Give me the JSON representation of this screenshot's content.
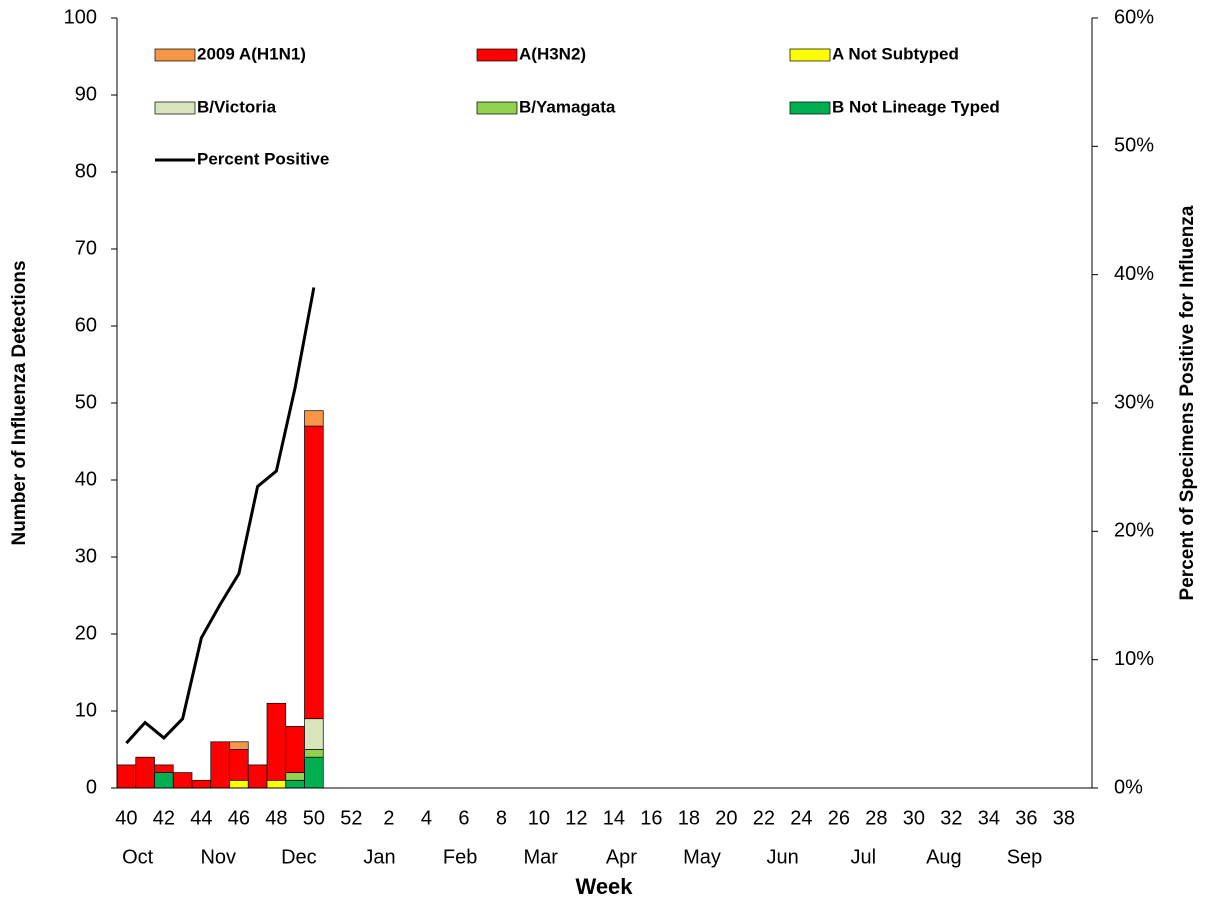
{
  "chart_data": {
    "type": "bar",
    "stacked": true,
    "x_label": "Week",
    "y_label": "Number of Influenza Detections",
    "y2_label": "Percent  of Specimens  Positive for Influenza",
    "categories": [
      "40",
      null,
      "42",
      null,
      "44",
      null,
      "46",
      null,
      "48",
      null,
      "50",
      null,
      "52",
      null,
      "2",
      null,
      "4",
      null,
      "6",
      null,
      "8",
      null,
      "10",
      null,
      "12",
      null,
      "14",
      null,
      "16",
      null,
      "18",
      null,
      "20",
      null,
      "22",
      null,
      "24",
      null,
      "26",
      null,
      "28",
      null,
      "30",
      null,
      "32",
      null,
      "34",
      null,
      "36",
      null,
      "38",
      null
    ],
    "month_labels": [
      "Oct",
      "Nov",
      "Dec",
      "Jan",
      "Feb",
      "Mar",
      "Apr",
      "May",
      "Jun",
      "Jul",
      "Aug",
      "Sep"
    ],
    "ylim": [
      0,
      100
    ],
    "yticks": [
      0,
      10,
      20,
      30,
      40,
      50,
      60,
      70,
      80,
      90,
      100
    ],
    "y2lim": [
      0,
      60
    ],
    "y2ticks": [
      {
        "value": 0,
        "label": "0%"
      },
      {
        "value": 10,
        "label": "10%"
      },
      {
        "value": 20,
        "label": "20%"
      },
      {
        "value": 30,
        "label": "30%"
      },
      {
        "value": 40,
        "label": "40%"
      },
      {
        "value": 50,
        "label": "50%"
      },
      {
        "value": 60,
        "label": "60%"
      }
    ],
    "series": [
      {
        "name": "2009 A(H1N1)",
        "color": "#f79646",
        "values": [
          0,
          0,
          0,
          0,
          0,
          0,
          1,
          0,
          0,
          0,
          2,
          null,
          null,
          null,
          null,
          null,
          null,
          null,
          null,
          null,
          null,
          null,
          null,
          null,
          null,
          null,
          null,
          null,
          null,
          null,
          null,
          null,
          null,
          null,
          null,
          null,
          null,
          null,
          null,
          null,
          null,
          null,
          null,
          null,
          null,
          null,
          null,
          null,
          null,
          null,
          null,
          null
        ]
      },
      {
        "name": "A(H3N2)",
        "color": "#ff0000",
        "values": [
          3,
          4,
          1,
          2,
          1,
          6,
          4,
          3,
          10,
          6,
          38,
          null,
          null,
          null,
          null,
          null,
          null,
          null,
          null,
          null,
          null,
          null,
          null,
          null,
          null,
          null,
          null,
          null,
          null,
          null,
          null,
          null,
          null,
          null,
          null,
          null,
          null,
          null,
          null,
          null,
          null,
          null,
          null,
          null,
          null,
          null,
          null,
          null,
          null,
          null,
          null,
          null
        ]
      },
      {
        "name": "A Not Subtyped",
        "color": "#ffff00",
        "values": [
          0,
          0,
          0,
          0,
          0,
          0,
          1,
          0,
          1,
          0,
          0,
          null,
          null,
          null,
          null,
          null,
          null,
          null,
          null,
          null,
          null,
          null,
          null,
          null,
          null,
          null,
          null,
          null,
          null,
          null,
          null,
          null,
          null,
          null,
          null,
          null,
          null,
          null,
          null,
          null,
          null,
          null,
          null,
          null,
          null,
          null,
          null,
          null,
          null,
          null,
          null,
          null
        ]
      },
      {
        "name": "B/Victoria",
        "color": "#d8e4bc",
        "values": [
          0,
          0,
          0,
          0,
          0,
          0,
          0,
          0,
          0,
          0,
          4,
          null,
          null,
          null,
          null,
          null,
          null,
          null,
          null,
          null,
          null,
          null,
          null,
          null,
          null,
          null,
          null,
          null,
          null,
          null,
          null,
          null,
          null,
          null,
          null,
          null,
          null,
          null,
          null,
          null,
          null,
          null,
          null,
          null,
          null,
          null,
          null,
          null,
          null,
          null,
          null,
          null
        ]
      },
      {
        "name": "B/Yamagata",
        "color": "#92d050",
        "values": [
          0,
          0,
          0,
          0,
          0,
          0,
          0,
          0,
          0,
          1,
          1,
          null,
          null,
          null,
          null,
          null,
          null,
          null,
          null,
          null,
          null,
          null,
          null,
          null,
          null,
          null,
          null,
          null,
          null,
          null,
          null,
          null,
          null,
          null,
          null,
          null,
          null,
          null,
          null,
          null,
          null,
          null,
          null,
          null,
          null,
          null,
          null,
          null,
          null,
          null,
          null,
          null
        ]
      },
      {
        "name": "B Not Lineage Typed",
        "color": "#00b050",
        "values": [
          0,
          0,
          2,
          0,
          0,
          0,
          0,
          0,
          0,
          1,
          4,
          null,
          null,
          null,
          null,
          null,
          null,
          null,
          null,
          null,
          null,
          null,
          null,
          null,
          null,
          null,
          null,
          null,
          null,
          null,
          null,
          null,
          null,
          null,
          null,
          null,
          null,
          null,
          null,
          null,
          null,
          null,
          null,
          null,
          null,
          null,
          null,
          null,
          null,
          null,
          null,
          null
        ]
      },
      {
        "name": "Percent Positive",
        "type": "line",
        "axis": "y2",
        "color": "#000000",
        "values": [
          3.5,
          5.1,
          3.9,
          5.4,
          11.7,
          14.3,
          16.7,
          23.5,
          24.7,
          31.2,
          39.0,
          null,
          null,
          null,
          null,
          null,
          null,
          null,
          null,
          null,
          null,
          null,
          null,
          null,
          null,
          null,
          null,
          null,
          null,
          null,
          null,
          null,
          null,
          null,
          null,
          null,
          null,
          null,
          null,
          null,
          null,
          null,
          null,
          null,
          null,
          null,
          null,
          null,
          null,
          null,
          null,
          null
        ]
      }
    ]
  }
}
